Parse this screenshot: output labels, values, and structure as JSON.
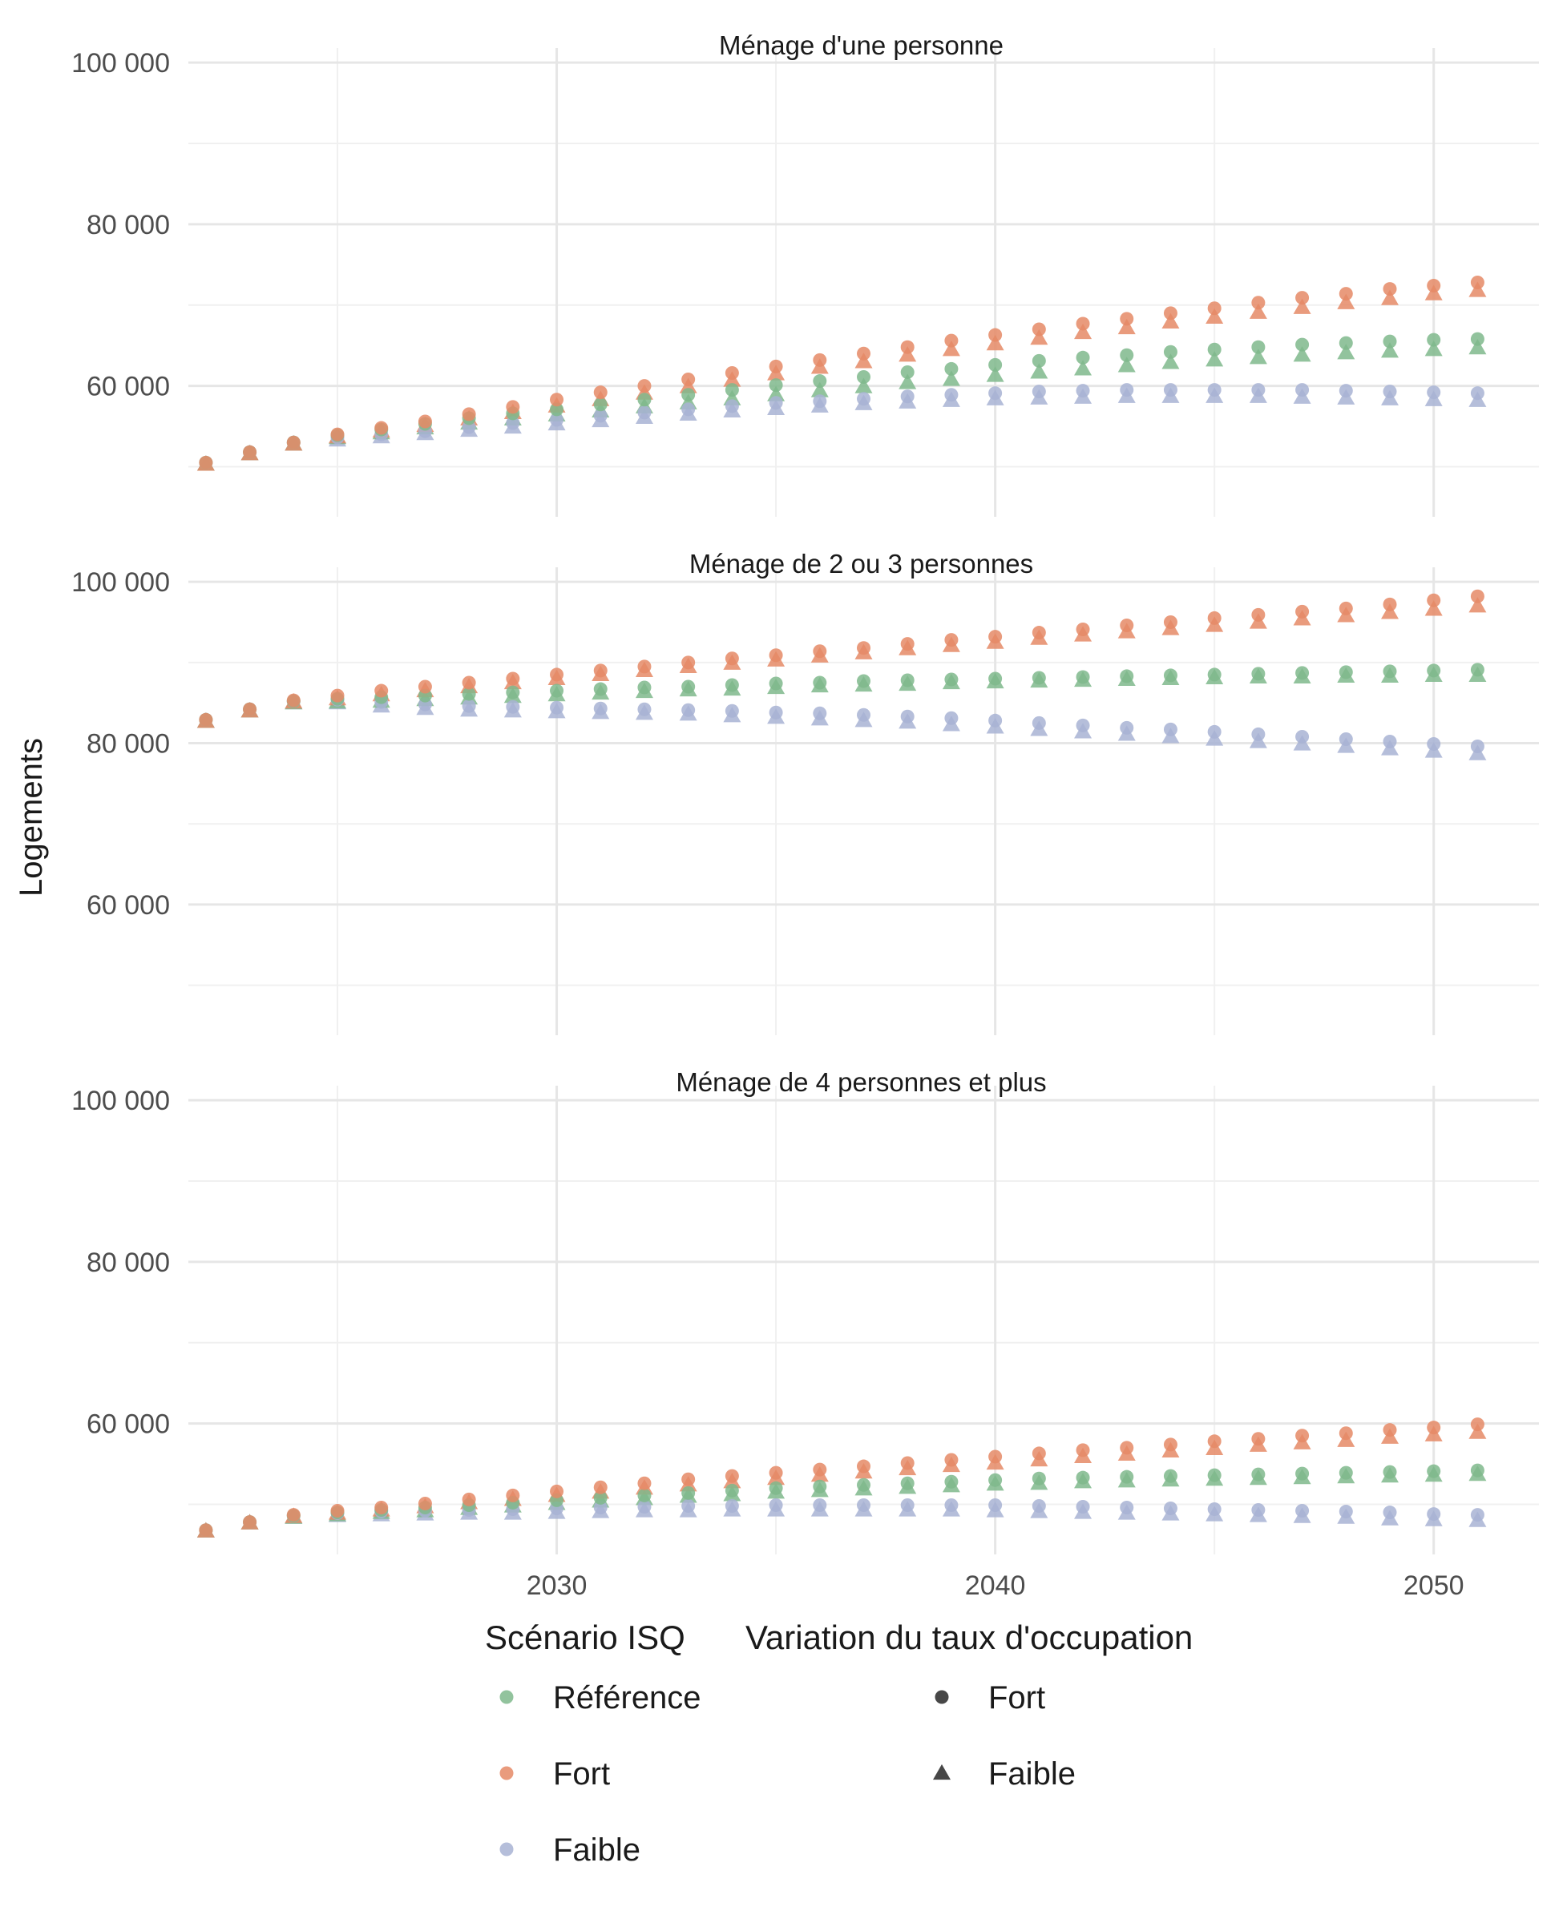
{
  "chart_data": {
    "type": "scatter",
    "ylabel": "Logements",
    "xlabel": "",
    "xlim": [
      2021.6,
      2052.4
    ],
    "ylim": [
      43800,
      101800
    ],
    "y_ticks": [
      60000,
      80000,
      100000
    ],
    "y_tick_labels": [
      "60 000",
      "80 000",
      "100 000"
    ],
    "x_ticks": [
      2030,
      2040,
      2050
    ],
    "x_tick_labels": [
      "2030",
      "2040",
      "2050"
    ],
    "grid": true,
    "legend": {
      "placement": "bottom",
      "color_title": "Scénario ISQ",
      "shape_title": "Variation du taux d'occupation",
      "color_entries": [
        {
          "key": "reference",
          "label": "Référence",
          "color": "#7fb88c"
        },
        {
          "key": "fort",
          "label": "Fort",
          "color": "#e58a66"
        },
        {
          "key": "faible",
          "label": "Faible",
          "color": "#a8b3d3"
        }
      ],
      "shape_entries": [
        {
          "key": "circle",
          "label": "Fort",
          "shape": "circle"
        },
        {
          "key": "triangle",
          "label": "Faible",
          "shape": "triangle"
        }
      ]
    },
    "x": [
      2022,
      2023,
      2024,
      2025,
      2026,
      2027,
      2028,
      2029,
      2030,
      2031,
      2032,
      2033,
      2034,
      2035,
      2036,
      2037,
      2038,
      2039,
      2040,
      2041,
      2042,
      2043,
      2044,
      2045,
      2046,
      2047,
      2048,
      2049,
      2050,
      2051
    ],
    "panels": [
      {
        "title": "Ménage d'une personne",
        "series": [
          {
            "scenario": "faible",
            "shape": "circle",
            "values": [
              50500,
              51800,
              53000,
              53600,
              54000,
              54400,
              54900,
              55400,
              55800,
              56300,
              56700,
              57100,
              57500,
              57900,
              58100,
              58400,
              58700,
              58900,
              59100,
              59300,
              59400,
              59500,
              59500,
              59500,
              59500,
              59500,
              59400,
              59300,
              59200,
              59100
            ]
          },
          {
            "scenario": "faible",
            "shape": "triangle",
            "values": [
              50300,
              51600,
              52800,
              53300,
              53700,
              54100,
              54500,
              54900,
              55300,
              55700,
              56100,
              56500,
              56900,
              57200,
              57500,
              57800,
              58000,
              58200,
              58400,
              58500,
              58600,
              58700,
              58700,
              58700,
              58700,
              58600,
              58500,
              58400,
              58300,
              58200
            ]
          },
          {
            "scenario": "reference",
            "shape": "circle",
            "values": [
              50500,
              51800,
              53000,
              53900,
              54600,
              55300,
              56000,
              56600,
              57100,
              57700,
              58300,
              58900,
              59500,
              60100,
              60600,
              61100,
              61700,
              62100,
              62600,
              63100,
              63500,
              63800,
              64200,
              64500,
              64800,
              65100,
              65300,
              65500,
              65700,
              65800
            ]
          },
          {
            "scenario": "reference",
            "shape": "triangle",
            "values": [
              50300,
              51600,
              52800,
              53600,
              54200,
              54800,
              55400,
              55900,
              56400,
              56900,
              57400,
              57900,
              58400,
              58900,
              59400,
              59900,
              60400,
              60800,
              61300,
              61700,
              62100,
              62500,
              62900,
              63200,
              63500,
              63800,
              64100,
              64300,
              64500,
              64700
            ]
          },
          {
            "scenario": "fort",
            "shape": "circle",
            "values": [
              50500,
              51800,
              53000,
              54000,
              54800,
              55600,
              56500,
              57400,
              58300,
              59200,
              60000,
              60800,
              61600,
              62400,
              63200,
              64000,
              64800,
              65600,
              66300,
              67000,
              67700,
              68300,
              69000,
              69600,
              70300,
              70900,
              71400,
              72000,
              72400,
              72800
            ]
          },
          {
            "scenario": "fort",
            "shape": "triangle",
            "values": [
              50300,
              51600,
              52800,
              53700,
              54400,
              55100,
              55900,
              56700,
              57500,
              58300,
              59100,
              59900,
              60700,
              61500,
              62300,
              63000,
              63800,
              64500,
              65200,
              65900,
              66600,
              67200,
              67900,
              68500,
              69100,
              69700,
              70300,
              70800,
              71400,
              71800
            ]
          }
        ]
      },
      {
        "title": "Ménage de 2 ou 3 personnes",
        "series": [
          {
            "scenario": "faible",
            "shape": "circle",
            "values": [
              82900,
              84200,
              85200,
              85400,
              85100,
              84800,
              84600,
              84500,
              84400,
              84300,
              84200,
              84100,
              84000,
              83800,
              83700,
              83500,
              83300,
              83100,
              82800,
              82500,
              82200,
              81900,
              81700,
              81400,
              81100,
              80800,
              80500,
              80200,
              79900,
              79600
            ]
          },
          {
            "scenario": "faible",
            "shape": "triangle",
            "values": [
              82700,
              84000,
              85000,
              85000,
              84600,
              84300,
              84100,
              84000,
              83900,
              83800,
              83700,
              83600,
              83400,
              83200,
              83000,
              82800,
              82600,
              82300,
              82000,
              81700,
              81400,
              81100,
              80800,
              80500,
              80200,
              79900,
              79600,
              79300,
              79000,
              78700
            ]
          },
          {
            "scenario": "reference",
            "shape": "circle",
            "values": [
              82900,
              84200,
              85200,
              85500,
              85700,
              85900,
              86100,
              86300,
              86500,
              86700,
              86900,
              87000,
              87200,
              87400,
              87500,
              87700,
              87800,
              87900,
              88000,
              88100,
              88200,
              88300,
              88400,
              88500,
              88600,
              88700,
              88800,
              88900,
              89000,
              89100
            ]
          },
          {
            "scenario": "reference",
            "shape": "triangle",
            "values": [
              82700,
              84000,
              85000,
              85100,
              85200,
              85400,
              85600,
              85800,
              86000,
              86200,
              86400,
              86600,
              86700,
              86900,
              87100,
              87200,
              87300,
              87500,
              87600,
              87700,
              87800,
              87900,
              88000,
              88100,
              88200,
              88200,
              88300,
              88300,
              88400,
              88400
            ]
          },
          {
            "scenario": "fort",
            "shape": "circle",
            "values": [
              82900,
              84200,
              85300,
              85900,
              86500,
              87000,
              87500,
              88000,
              88500,
              89000,
              89500,
              90000,
              90500,
              90900,
              91400,
              91800,
              92300,
              92800,
              93200,
              93700,
              94100,
              94600,
              95000,
              95500,
              95900,
              96300,
              96700,
              97200,
              97700,
              98200
            ]
          },
          {
            "scenario": "fort",
            "shape": "triangle",
            "values": [
              82700,
              84000,
              85100,
              85500,
              86000,
              86500,
              87000,
              87500,
              88000,
              88500,
              89000,
              89500,
              89900,
              90300,
              90800,
              91200,
              91700,
              92100,
              92500,
              93000,
              93400,
              93800,
              94200,
              94600,
              95000,
              95400,
              95800,
              96200,
              96600,
              97000
            ]
          }
        ]
      },
      {
        "title": "Ménage de 4 personnes et plus",
        "series": [
          {
            "scenario": "faible",
            "shape": "circle",
            "values": [
              46800,
              47800,
              48600,
              48900,
              49100,
              49200,
              49300,
              49400,
              49500,
              49600,
              49700,
              49800,
              49800,
              49900,
              49900,
              49900,
              49900,
              49900,
              49900,
              49800,
              49700,
              49600,
              49500,
              49400,
              49300,
              49200,
              49100,
              49000,
              48800,
              48700
            ]
          },
          {
            "scenario": "faible",
            "shape": "triangle",
            "values": [
              46700,
              47700,
              48400,
              48600,
              48700,
              48800,
              48900,
              48900,
              49000,
              49100,
              49200,
              49200,
              49300,
              49300,
              49300,
              49300,
              49300,
              49300,
              49200,
              49100,
              49000,
              48900,
              48800,
              48700,
              48600,
              48500,
              48400,
              48200,
              48100,
              48000
            ]
          },
          {
            "scenario": "reference",
            "shape": "circle",
            "values": [
              46800,
              47800,
              48600,
              49000,
              49300,
              49600,
              49900,
              50200,
              50500,
              50800,
              51100,
              51400,
              51700,
              52000,
              52200,
              52400,
              52600,
              52800,
              53000,
              53200,
              53300,
              53400,
              53500,
              53600,
              53700,
              53800,
              53900,
              54000,
              54100,
              54200
            ]
          },
          {
            "scenario": "reference",
            "shape": "triangle",
            "values": [
              46700,
              47700,
              48400,
              48700,
              49000,
              49200,
              49500,
              49800,
              50100,
              50400,
              50700,
              51000,
              51200,
              51500,
              51700,
              51900,
              52100,
              52300,
              52500,
              52600,
              52800,
              52900,
              53000,
              53100,
              53200,
              53300,
              53400,
              53500,
              53600,
              53700
            ]
          },
          {
            "scenario": "fort",
            "shape": "circle",
            "values": [
              46800,
              47800,
              48700,
              49200,
              49600,
              50100,
              50600,
              51100,
              51600,
              52100,
              52600,
              53100,
              53500,
              53900,
              54300,
              54700,
              55100,
              55500,
              55900,
              56300,
              56700,
              57000,
              57400,
              57800,
              58100,
              58500,
              58800,
              59200,
              59500,
              59900
            ]
          },
          {
            "scenario": "fort",
            "shape": "triangle",
            "values": [
              46700,
              47700,
              48500,
              48900,
              49300,
              49700,
              50200,
              50600,
              51100,
              51500,
              52000,
              52400,
              52800,
              53200,
              53600,
              54000,
              54400,
              54800,
              55100,
              55500,
              55900,
              56200,
              56600,
              56900,
              57300,
              57600,
              57900,
              58300,
              58600,
              58900
            ]
          }
        ]
      }
    ]
  }
}
